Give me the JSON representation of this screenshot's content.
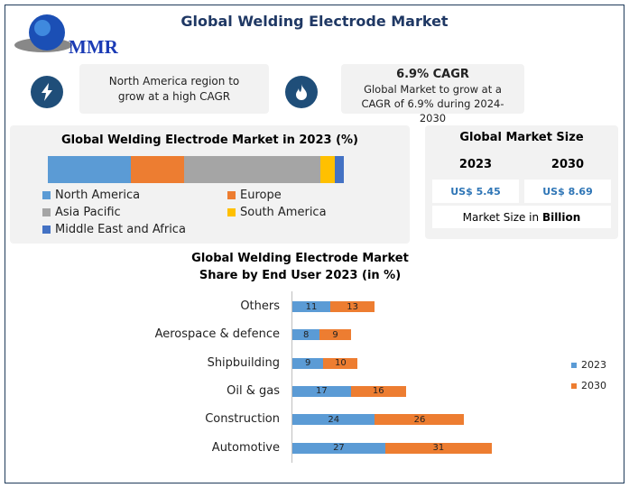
{
  "title": "Global Welding Electrode Market",
  "logo_text": "MMR",
  "info": [
    {
      "icon": "lightning-icon",
      "heading": "",
      "text": "North America region to grow at a high CAGR"
    },
    {
      "icon": "flame-icon",
      "heading": "6.9% CAGR",
      "text": "Global Market to grow at a CAGR of 6.9% during 2024-2030"
    }
  ],
  "market_size": {
    "title": "Global Market Size",
    "years": [
      "2023",
      "2030"
    ],
    "values": [
      "US$ 5.45",
      "US$ 8.69"
    ],
    "unit_prefix": "Market Size in ",
    "unit_bold": "Billion"
  },
  "colors": {
    "na": "#5b9bd5",
    "eu": "#ed7d31",
    "ap": "#a5a5a5",
    "sa": "#ffc000",
    "mea": "#4472c4",
    "title": "#1f3864"
  },
  "chart_data": [
    {
      "type": "bar",
      "stacked": true,
      "orientation": "horizontal",
      "title": "Global Welding Electrode Market in 2023 (%)",
      "series": [
        {
          "name": "North America",
          "values": [
            28
          ]
        },
        {
          "name": "Europe",
          "values": [
            18
          ]
        },
        {
          "name": "Asia Pacific",
          "values": [
            46
          ]
        },
        {
          "name": "South America",
          "values": [
            5
          ]
        },
        {
          "name": "Middle East and Africa",
          "values": [
            3
          ]
        }
      ],
      "legend": "bottom"
    },
    {
      "type": "bar",
      "stacked": true,
      "orientation": "horizontal",
      "title": "Global Welding Electrode Market Share by End User 2023 (in %)",
      "categories": [
        "Others",
        "Aerospace & defence",
        "Shipbuilding",
        "Oil & gas",
        "Construction",
        "Automotive"
      ],
      "series": [
        {
          "name": "2023",
          "values": [
            11,
            8,
            9,
            17,
            24,
            27
          ]
        },
        {
          "name": "2030",
          "values": [
            13,
            9,
            10,
            16,
            26,
            31
          ]
        }
      ],
      "legend": "right",
      "grid": false
    }
  ]
}
